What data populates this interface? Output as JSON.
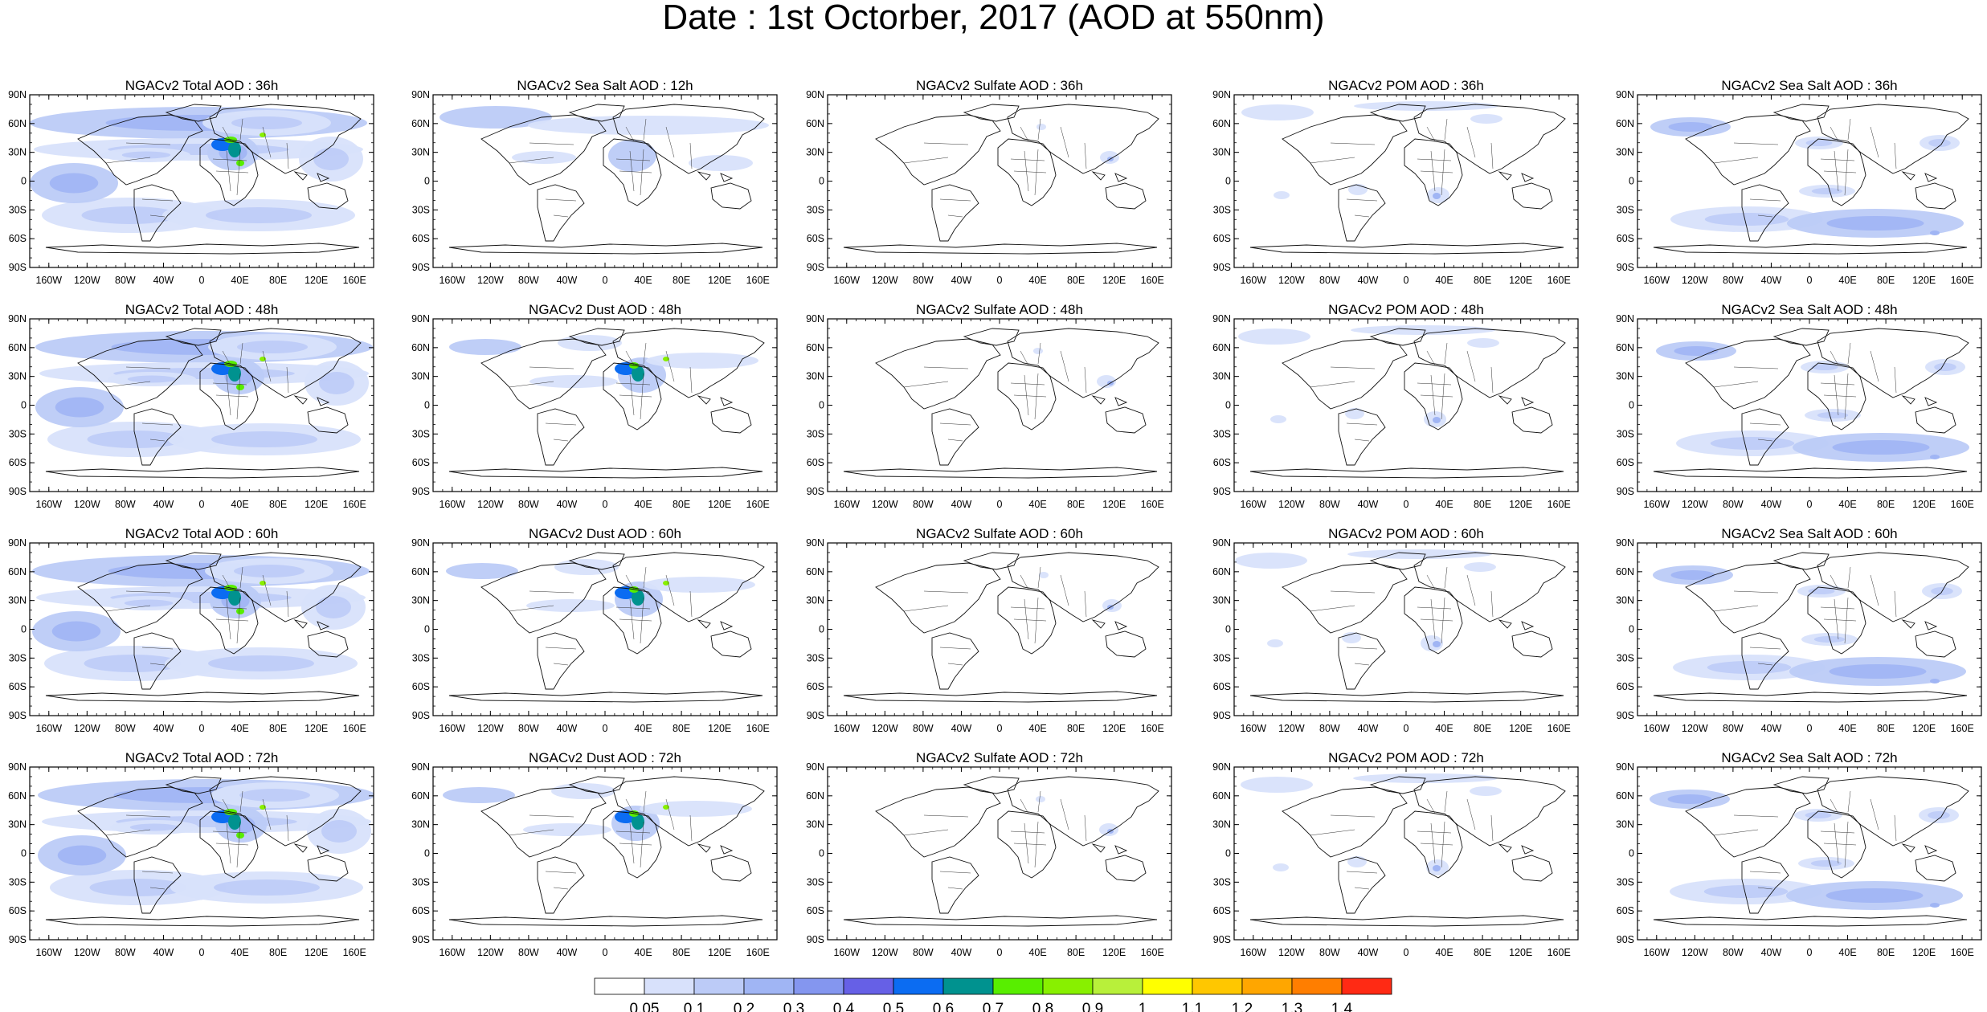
{
  "title": "Date : 1st Octorber, 2017 (AOD at 550nm)",
  "panels": [
    [
      "NGACv2 Total AOD : 36h",
      "NGACv2 Sea Salt  AOD : 12h",
      "NGACv2 Sulfate AOD : 36h",
      "NGACv2 POM AOD : 36h",
      "NGACv2 Sea Salt AOD : 36h"
    ],
    [
      "NGACv2 Total AOD : 48h",
      "NGACv2 Dust AOD : 48h",
      "NGACv2 Sulfate AOD : 48h",
      "NGACv2 POM AOD : 48h",
      "NGACv2 Sea Salt AOD : 48h"
    ],
    [
      "NGACv2 Total AOD : 60h",
      "NGACv2 Dust AOD : 60h",
      "NGACv2 Sulfate AOD : 60h",
      "NGACv2 POM AOD : 60h",
      "NGACv2 Sea Salt AOD : 60h"
    ],
    [
      "NGACv2 Total AOD : 72h",
      "NGACv2 Dust AOD : 72h",
      "NGACv2 Sulfate AOD : 72h",
      "NGACv2 POM AOD : 72h",
      "NGACv2 Sea Salt  AOD : 72h"
    ]
  ],
  "lat_ticks": [
    "90N",
    "60N",
    "30N",
    "0",
    "30S",
    "60S",
    "90S"
  ],
  "lon_ticks": [
    "160W",
    "120W",
    "80W",
    "40W",
    "0",
    "40E",
    "80E",
    "120E",
    "160E"
  ],
  "colorbar": {
    "labels": [
      "0.05",
      "0.1",
      "0.2",
      "0.3",
      "0.4",
      "0.5",
      "0.6",
      "0.7",
      "0.8",
      "0.9",
      "1",
      "1.1",
      "1.2",
      "1.3",
      "1.4"
    ],
    "colors": [
      "#ffffff",
      "#d8e1fb",
      "#bccbf7",
      "#a0b5f4",
      "#8496ef",
      "#6660e6",
      "#0b6cf2",
      "#00928f",
      "#58ee00",
      "#88f000",
      "#b8f03a",
      "#ffff00",
      "#ffc700",
      "#ffa600",
      "#ff7e00",
      "#ff2a14"
    ]
  }
}
